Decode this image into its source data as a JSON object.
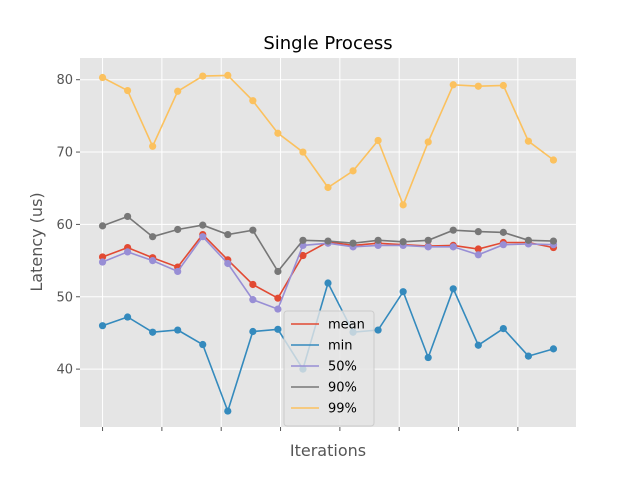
{
  "chart_data": {
    "type": "line",
    "title": "Single Process",
    "xlabel": "Iterations",
    "ylabel": "Latency (us)",
    "x": [
      0,
      1,
      2,
      3,
      4,
      5,
      6,
      7,
      8,
      9,
      10,
      11,
      12,
      13,
      14,
      15,
      16,
      17,
      18
    ],
    "xlim": [
      -0.9,
      18.9
    ],
    "ylim": [
      32,
      83
    ],
    "yticks": [
      40,
      50,
      60,
      70,
      80
    ],
    "xtick_count": 8,
    "grid": true,
    "legend_position": "lower center",
    "series": [
      {
        "name": "mean",
        "color": "#E24A33",
        "values": [
          55.5,
          56.8,
          55.4,
          54.1,
          58.6,
          55.1,
          51.7,
          49.8,
          55.7,
          57.6,
          57.1,
          57.4,
          57.2,
          57.0,
          57.1,
          56.6,
          57.5,
          57.5,
          56.8
        ]
      },
      {
        "name": "min",
        "color": "#348ABD",
        "values": [
          46.0,
          47.2,
          45.1,
          45.4,
          43.4,
          34.2,
          45.2,
          45.5,
          40.0,
          51.9,
          45.1,
          45.4,
          50.7,
          41.6,
          51.1,
          43.3,
          45.6,
          41.8,
          42.8
        ]
      },
      {
        "name": "50%",
        "color": "#988ED5",
        "values": [
          54.8,
          56.2,
          55.0,
          53.5,
          58.3,
          54.6,
          49.6,
          48.3,
          57.1,
          57.4,
          56.9,
          57.1,
          57.1,
          56.9,
          56.9,
          55.8,
          57.2,
          57.3,
          57.2
        ]
      },
      {
        "name": "90%",
        "color": "#777777",
        "values": [
          59.8,
          61.1,
          58.3,
          59.3,
          59.9,
          58.6,
          59.2,
          53.5,
          57.8,
          57.7,
          57.4,
          57.8,
          57.6,
          57.8,
          59.2,
          59.0,
          58.9,
          57.8,
          57.7
        ]
      },
      {
        "name": "99%",
        "color": "#FBC15E",
        "values": [
          80.3,
          78.5,
          70.8,
          78.4,
          80.5,
          80.6,
          77.1,
          72.6,
          70.0,
          65.1,
          67.4,
          71.6,
          62.7,
          71.4,
          79.3,
          79.1,
          79.2,
          71.5,
          68.9
        ]
      }
    ]
  }
}
